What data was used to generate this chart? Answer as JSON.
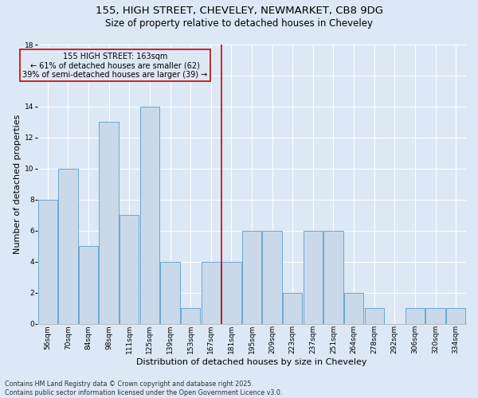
{
  "title1": "155, HIGH STREET, CHEVELEY, NEWMARKET, CB8 9DG",
  "title2": "Size of property relative to detached houses in Cheveley",
  "xlabel": "Distribution of detached houses by size in Cheveley",
  "ylabel": "Number of detached properties",
  "bar_labels": [
    "56sqm",
    "70sqm",
    "84sqm",
    "98sqm",
    "111sqm",
    "125sqm",
    "139sqm",
    "153sqm",
    "167sqm",
    "181sqm",
    "195sqm",
    "209sqm",
    "223sqm",
    "237sqm",
    "251sqm",
    "264sqm",
    "278sqm",
    "292sqm",
    "306sqm",
    "320sqm",
    "334sqm"
  ],
  "bar_values": [
    8,
    10,
    5,
    13,
    7,
    14,
    4,
    1,
    4,
    4,
    6,
    6,
    2,
    6,
    6,
    2,
    1,
    0,
    1,
    1,
    1
  ],
  "bar_color": "#c9d9ea",
  "bar_edgecolor": "#5b9ec9",
  "vline_x": 8.5,
  "vline_color": "#cc0000",
  "annotation_text": "155 HIGH STREET: 163sqm\n← 61% of detached houses are smaller (62)\n39% of semi-detached houses are larger (39) →",
  "annotation_box_color": "#cc0000",
  "annotation_text_color": "#000000",
  "background_color": "#dce8f5",
  "ylim": [
    0,
    18
  ],
  "yticks": [
    0,
    2,
    4,
    6,
    8,
    10,
    12,
    14,
    16,
    18
  ],
  "footer_text": "Contains HM Land Registry data © Crown copyright and database right 2025.\nContains public sector information licensed under the Open Government Licence v3.0.",
  "title_fontsize": 9.5,
  "subtitle_fontsize": 8.5,
  "label_fontsize": 8,
  "tick_fontsize": 6.5,
  "footer_fontsize": 5.8,
  "annot_fontsize": 7.0
}
